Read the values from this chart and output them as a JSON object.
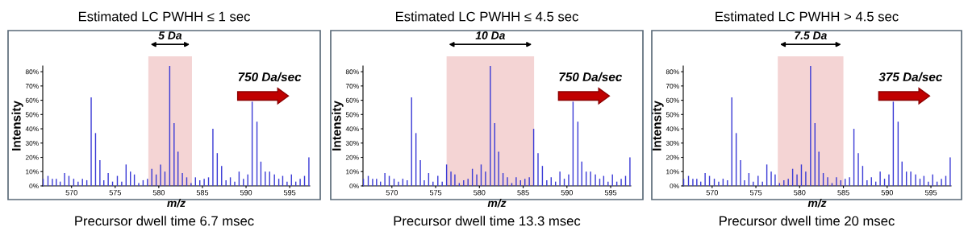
{
  "chart_data": [
    {
      "type": "bar",
      "title": "Estimated LC PWHH ≤ 1 sec",
      "xlabel": "m/z",
      "ylabel": "Intensity",
      "x": [
        566.75,
        567.3,
        567.8,
        568.25,
        568.7,
        569.2,
        569.7,
        570.25,
        570.75,
        571.25,
        571.75,
        572.25,
        572.75,
        573.25,
        573.7,
        574.2,
        574.7,
        575.25,
        575.75,
        576.25,
        576.75,
        577.2,
        577.7,
        578.2,
        578.7,
        579.2,
        579.7,
        580.2,
        580.7,
        581.25,
        581.75,
        582.2,
        582.7,
        583.2,
        583.7,
        584.2,
        584.7,
        585.2,
        585.7,
        586.2,
        586.7,
        587.2,
        587.7,
        588.2,
        588.7,
        589.2,
        589.7,
        590.2,
        590.7,
        591.25,
        591.7,
        592.2,
        592.7,
        593.25,
        593.75,
        594.2,
        594.7,
        595.2,
        595.7,
        596.2,
        596.7,
        597.2
      ],
      "series": [
        {
          "color": "#3b3bd6",
          "values": [
            5,
            7,
            5,
            5,
            3,
            9,
            7,
            5,
            3,
            5,
            4,
            62,
            37,
            18,
            4,
            9,
            3,
            7,
            3,
            15,
            10,
            8,
            2,
            4,
            5,
            12,
            8,
            15,
            10,
            84,
            44,
            24,
            9,
            6,
            2,
            6,
            4,
            5,
            6,
            40,
            23,
            14,
            4,
            6,
            3,
            10,
            5,
            8,
            59,
            45,
            17,
            10,
            10,
            8,
            5,
            7,
            3,
            8,
            3,
            5,
            7,
            20
          ]
        }
      ],
      "xlim": [
        566.7,
        597.3
      ],
      "ylim": [
        0,
        84
      ],
      "xticks": [
        570,
        575,
        580,
        585,
        590,
        595
      ],
      "yticks": [
        {
          "value": 0,
          "label": "0%"
        },
        {
          "value": 10,
          "label": "10%"
        },
        {
          "value": 20,
          "label": "20%"
        },
        {
          "value": 30,
          "label": "30%"
        },
        {
          "value": 40,
          "label": "40%"
        },
        {
          "value": 50,
          "label": "50%"
        },
        {
          "value": 60,
          "label": "60%"
        },
        {
          "value": 70,
          "label": "70%"
        },
        {
          "value": 80,
          "label": "80%"
        }
      ],
      "bands": [
        {
          "axis": "x",
          "from": 578.8,
          "to": 583.8,
          "label": "5 Da",
          "color": "#f4d4d4"
        }
      ],
      "annotations": [
        "750 Da/sec",
        "Precursor dwell time 6.7 msec"
      ]
    },
    {
      "type": "bar",
      "title": "Estimated LC PWHH ≤ 4.5 sec",
      "xlabel": "m/z",
      "ylabel": "Intensity",
      "x": [
        566.75,
        567.3,
        567.8,
        568.25,
        568.7,
        569.2,
        569.7,
        570.25,
        570.75,
        571.25,
        571.75,
        572.25,
        572.75,
        573.25,
        573.7,
        574.2,
        574.7,
        575.25,
        575.75,
        576.25,
        576.75,
        577.2,
        577.7,
        578.2,
        578.7,
        579.2,
        579.7,
        580.2,
        580.7,
        581.25,
        581.75,
        582.2,
        582.7,
        583.2,
        583.7,
        584.2,
        584.7,
        585.2,
        585.7,
        586.2,
        586.7,
        587.2,
        587.7,
        588.2,
        588.7,
        589.2,
        589.7,
        590.2,
        590.7,
        591.25,
        591.7,
        592.2,
        592.7,
        593.25,
        593.75,
        594.2,
        594.7,
        595.2,
        595.7,
        596.2,
        596.7,
        597.2
      ],
      "series": [
        {
          "color": "#3b3bd6",
          "values": [
            5,
            7,
            5,
            5,
            3,
            9,
            7,
            5,
            3,
            5,
            4,
            62,
            37,
            18,
            4,
            9,
            3,
            7,
            3,
            15,
            10,
            8,
            2,
            4,
            5,
            12,
            8,
            15,
            10,
            84,
            44,
            24,
            9,
            6,
            2,
            6,
            4,
            5,
            6,
            40,
            23,
            14,
            4,
            6,
            3,
            10,
            5,
            8,
            59,
            45,
            17,
            10,
            10,
            8,
            5,
            7,
            3,
            8,
            3,
            5,
            7,
            20
          ]
        }
      ],
      "xlim": [
        566.7,
        597.3
      ],
      "ylim": [
        0,
        84
      ],
      "xticks": [
        570,
        575,
        580,
        585,
        590,
        595
      ],
      "yticks": [
        {
          "value": 0,
          "label": "0%"
        },
        {
          "value": 10,
          "label": "10%"
        },
        {
          "value": 20,
          "label": "20%"
        },
        {
          "value": 30,
          "label": "30%"
        },
        {
          "value": 40,
          "label": "40%"
        },
        {
          "value": 50,
          "label": "50%"
        },
        {
          "value": 60,
          "label": "60%"
        },
        {
          "value": 70,
          "label": "70%"
        },
        {
          "value": 80,
          "label": "80%"
        }
      ],
      "bands": [
        {
          "axis": "x",
          "from": 576.25,
          "to": 586.25,
          "label": "10 Da",
          "color": "#f4d4d4"
        }
      ],
      "annotations": [
        "750 Da/sec",
        "Precursor dwell time 13.3 msec"
      ]
    },
    {
      "type": "bar",
      "title": "Estimated LC PWHH > 4.5 sec",
      "xlabel": "m/z",
      "ylabel": "Intensity",
      "x": [
        566.75,
        567.3,
        567.8,
        568.25,
        568.7,
        569.2,
        569.7,
        570.25,
        570.75,
        571.25,
        571.75,
        572.25,
        572.75,
        573.25,
        573.7,
        574.2,
        574.7,
        575.25,
        575.75,
        576.25,
        576.75,
        577.2,
        577.7,
        578.2,
        578.7,
        579.2,
        579.7,
        580.2,
        580.7,
        581.25,
        581.75,
        582.2,
        582.7,
        583.2,
        583.7,
        584.2,
        584.7,
        585.2,
        585.7,
        586.2,
        586.7,
        587.2,
        587.7,
        588.2,
        588.7,
        589.2,
        589.7,
        590.2,
        590.7,
        591.25,
        591.7,
        592.2,
        592.7,
        593.25,
        593.75,
        594.2,
        594.7,
        595.2,
        595.7,
        596.2,
        596.7,
        597.2
      ],
      "series": [
        {
          "color": "#3b3bd6",
          "values": [
            5,
            7,
            5,
            5,
            3,
            9,
            7,
            5,
            3,
            5,
            4,
            62,
            37,
            18,
            4,
            9,
            3,
            7,
            3,
            15,
            10,
            8,
            2,
            4,
            5,
            12,
            8,
            15,
            10,
            84,
            44,
            24,
            9,
            6,
            2,
            6,
            4,
            5,
            6,
            40,
            23,
            14,
            4,
            6,
            3,
            10,
            5,
            8,
            59,
            45,
            17,
            10,
            10,
            8,
            5,
            7,
            3,
            8,
            3,
            5,
            7,
            20
          ]
        }
      ],
      "xlim": [
        566.7,
        597.3
      ],
      "ylim": [
        0,
        84
      ],
      "xticks": [
        570,
        575,
        580,
        585,
        590,
        595
      ],
      "yticks": [
        {
          "value": 0,
          "label": "0%"
        },
        {
          "value": 10,
          "label": "10%"
        },
        {
          "value": 20,
          "label": "20%"
        },
        {
          "value": 30,
          "label": "30%"
        },
        {
          "value": 40,
          "label": "40%"
        },
        {
          "value": 50,
          "label": "50%"
        },
        {
          "value": 60,
          "label": "60%"
        },
        {
          "value": 70,
          "label": "70%"
        },
        {
          "value": 80,
          "label": "80%"
        }
      ],
      "bands": [
        {
          "axis": "x",
          "from": 577.5,
          "to": 585.0,
          "label": "7.5 Da",
          "color": "#f4d4d4"
        }
      ],
      "annotations": [
        "375 Da/sec",
        "Precursor dwell time 20 msec"
      ]
    }
  ]
}
